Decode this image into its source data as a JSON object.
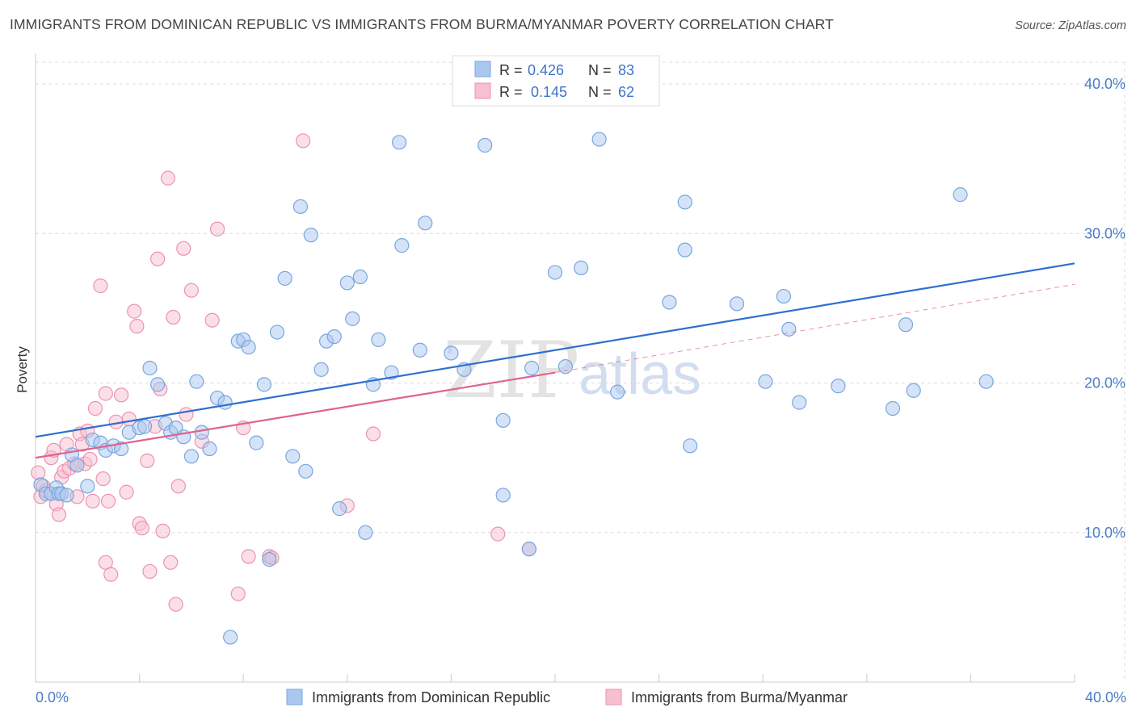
{
  "title": "IMMIGRANTS FROM DOMINICAN REPUBLIC VS IMMIGRANTS FROM BURMA/MYANMAR POVERTY CORRELATION CHART",
  "source": "Source: ZipAtlas.com",
  "watermark": {
    "zip": "ZIP",
    "atlas": "atlas"
  },
  "colors": {
    "blue_fill": "#a9c8f0",
    "blue_stroke": "#7aa6de",
    "blue_line": "#2f6fce",
    "pink_fill": "#f7bfd0",
    "pink_stroke": "#ec93b0",
    "pink_line": "#e0628f",
    "grid": "#dcdcdc",
    "axis_text": "#4a7cc7"
  },
  "stats": [
    {
      "r_label": "R =",
      "r_value": "0.426",
      "n_label": "N =",
      "n_value": "83"
    },
    {
      "r_label": "R =",
      "r_value": "0.145",
      "n_label": "N =",
      "n_value": "62"
    }
  ],
  "chart_data": {
    "type": "scatter",
    "title": "IMMIGRANTS FROM DOMINICAN REPUBLIC VS IMMIGRANTS FROM BURMA/MYANMAR POVERTY CORRELATION CHART",
    "xlabel": "",
    "ylabel": "Poverty",
    "xlim": [
      0,
      40
    ],
    "ylim": [
      0,
      42
    ],
    "x_tick_labels": [
      "0.0%",
      "40.0%"
    ],
    "y_ticks": [
      10,
      20,
      30,
      40
    ],
    "y_tick_labels": [
      "10.0%",
      "20.0%",
      "30.0%",
      "40.0%"
    ],
    "grid": "horizontal dashed",
    "legend_position": "bottom-center",
    "series": [
      {
        "name": "Immigrants from Dominican Republic",
        "color": "#a9c8f0",
        "trend": {
          "x": [
            0,
            40
          ],
          "y": [
            16.4,
            28.0
          ]
        },
        "points": [
          [
            0.2,
            13.2
          ],
          [
            0.4,
            12.6
          ],
          [
            0.6,
            12.6
          ],
          [
            0.8,
            13.0
          ],
          [
            0.9,
            12.6
          ],
          [
            1.0,
            12.6
          ],
          [
            1.2,
            12.5
          ],
          [
            1.4,
            15.2
          ],
          [
            1.6,
            14.5
          ],
          [
            2.0,
            13.1
          ],
          [
            2.2,
            16.2
          ],
          [
            2.5,
            16.0
          ],
          [
            2.7,
            15.5
          ],
          [
            3.0,
            15.8
          ],
          [
            3.3,
            15.6
          ],
          [
            3.6,
            16.7
          ],
          [
            4.0,
            17.0
          ],
          [
            4.2,
            17.1
          ],
          [
            4.4,
            21.0
          ],
          [
            4.7,
            19.9
          ],
          [
            5.0,
            17.3
          ],
          [
            5.2,
            16.7
          ],
          [
            5.4,
            17.0
          ],
          [
            5.7,
            16.4
          ],
          [
            6.0,
            15.1
          ],
          [
            6.2,
            20.1
          ],
          [
            6.4,
            16.7
          ],
          [
            6.7,
            15.6
          ],
          [
            7.0,
            19.0
          ],
          [
            7.3,
            18.7
          ],
          [
            7.5,
            3.0
          ],
          [
            7.8,
            22.8
          ],
          [
            8.0,
            22.9
          ],
          [
            8.2,
            22.4
          ],
          [
            8.5,
            16.0
          ],
          [
            8.8,
            19.9
          ],
          [
            9.0,
            8.2
          ],
          [
            9.3,
            23.4
          ],
          [
            9.6,
            27.0
          ],
          [
            9.9,
            15.1
          ],
          [
            10.2,
            31.8
          ],
          [
            10.4,
            14.1
          ],
          [
            10.6,
            29.9
          ],
          [
            11.0,
            20.9
          ],
          [
            11.2,
            22.8
          ],
          [
            11.5,
            23.1
          ],
          [
            11.7,
            11.6
          ],
          [
            12.0,
            26.7
          ],
          [
            12.2,
            24.3
          ],
          [
            12.5,
            27.1
          ],
          [
            12.7,
            10.0
          ],
          [
            13.0,
            19.9
          ],
          [
            13.2,
            22.9
          ],
          [
            13.7,
            20.7
          ],
          [
            14.0,
            36.1
          ],
          [
            14.1,
            29.2
          ],
          [
            14.8,
            22.2
          ],
          [
            15.0,
            30.7
          ],
          [
            16.0,
            22.0
          ],
          [
            16.5,
            20.9
          ],
          [
            17.3,
            35.9
          ],
          [
            18.0,
            17.5
          ],
          [
            18.0,
            12.5
          ],
          [
            19.0,
            8.9
          ],
          [
            19.1,
            21.0
          ],
          [
            20.0,
            27.4
          ],
          [
            20.4,
            21.1
          ],
          [
            21.0,
            27.7
          ],
          [
            21.7,
            36.3
          ],
          [
            22.4,
            19.4
          ],
          [
            24.4,
            25.4
          ],
          [
            25.0,
            32.1
          ],
          [
            25.0,
            28.9
          ],
          [
            25.2,
            15.8
          ],
          [
            27.0,
            25.3
          ],
          [
            28.1,
            20.1
          ],
          [
            28.8,
            25.8
          ],
          [
            29.0,
            23.6
          ],
          [
            29.4,
            18.7
          ],
          [
            30.9,
            19.8
          ],
          [
            33.0,
            18.3
          ],
          [
            33.5,
            23.9
          ],
          [
            33.8,
            19.5
          ],
          [
            35.6,
            32.6
          ],
          [
            36.6,
            20.1
          ]
        ]
      },
      {
        "name": "Immigrants from Burma/Myanmar",
        "color": "#f7bfd0",
        "trend": {
          "x": [
            0,
            20
          ],
          "y": [
            15.0,
            20.7
          ]
        },
        "dashed_extension": {
          "x": [
            20,
            40
          ],
          "y": [
            20.7,
            26.6
          ]
        },
        "points": [
          [
            0.1,
            14.0
          ],
          [
            0.2,
            12.4
          ],
          [
            0.3,
            13.1
          ],
          [
            0.4,
            12.8
          ],
          [
            0.6,
            15.0
          ],
          [
            0.7,
            15.5
          ],
          [
            0.8,
            11.9
          ],
          [
            0.9,
            11.2
          ],
          [
            1.0,
            13.7
          ],
          [
            1.1,
            14.1
          ],
          [
            1.2,
            15.9
          ],
          [
            1.3,
            14.3
          ],
          [
            1.5,
            14.6
          ],
          [
            1.6,
            12.4
          ],
          [
            1.7,
            16.6
          ],
          [
            1.8,
            15.9
          ],
          [
            1.9,
            14.6
          ],
          [
            2.0,
            16.8
          ],
          [
            2.1,
            14.9
          ],
          [
            2.2,
            12.1
          ],
          [
            2.3,
            18.3
          ],
          [
            2.5,
            26.5
          ],
          [
            2.6,
            13.6
          ],
          [
            2.7,
            19.3
          ],
          [
            2.7,
            8.0
          ],
          [
            2.8,
            12.1
          ],
          [
            2.9,
            7.2
          ],
          [
            3.1,
            17.4
          ],
          [
            3.3,
            19.2
          ],
          [
            3.5,
            12.7
          ],
          [
            3.6,
            17.6
          ],
          [
            3.8,
            24.8
          ],
          [
            3.9,
            23.8
          ],
          [
            4.0,
            10.6
          ],
          [
            4.1,
            10.3
          ],
          [
            4.3,
            14.8
          ],
          [
            4.4,
            7.4
          ],
          [
            4.6,
            17.1
          ],
          [
            4.7,
            28.3
          ],
          [
            4.8,
            19.6
          ],
          [
            4.9,
            10.1
          ],
          [
            5.1,
            33.7
          ],
          [
            5.2,
            8.0
          ],
          [
            5.3,
            24.4
          ],
          [
            5.4,
            5.2
          ],
          [
            5.5,
            13.1
          ],
          [
            5.7,
            29.0
          ],
          [
            5.8,
            17.9
          ],
          [
            6.0,
            26.2
          ],
          [
            6.4,
            16.1
          ],
          [
            6.8,
            24.2
          ],
          [
            7.0,
            30.3
          ],
          [
            7.8,
            5.9
          ],
          [
            8.0,
            17.0
          ],
          [
            8.2,
            8.4
          ],
          [
            9.0,
            8.4
          ],
          [
            9.1,
            8.3
          ],
          [
            10.3,
            36.2
          ],
          [
            12.0,
            11.8
          ],
          [
            13.0,
            16.6
          ],
          [
            17.8,
            9.9
          ],
          [
            19.0,
            8.9
          ]
        ]
      }
    ]
  }
}
